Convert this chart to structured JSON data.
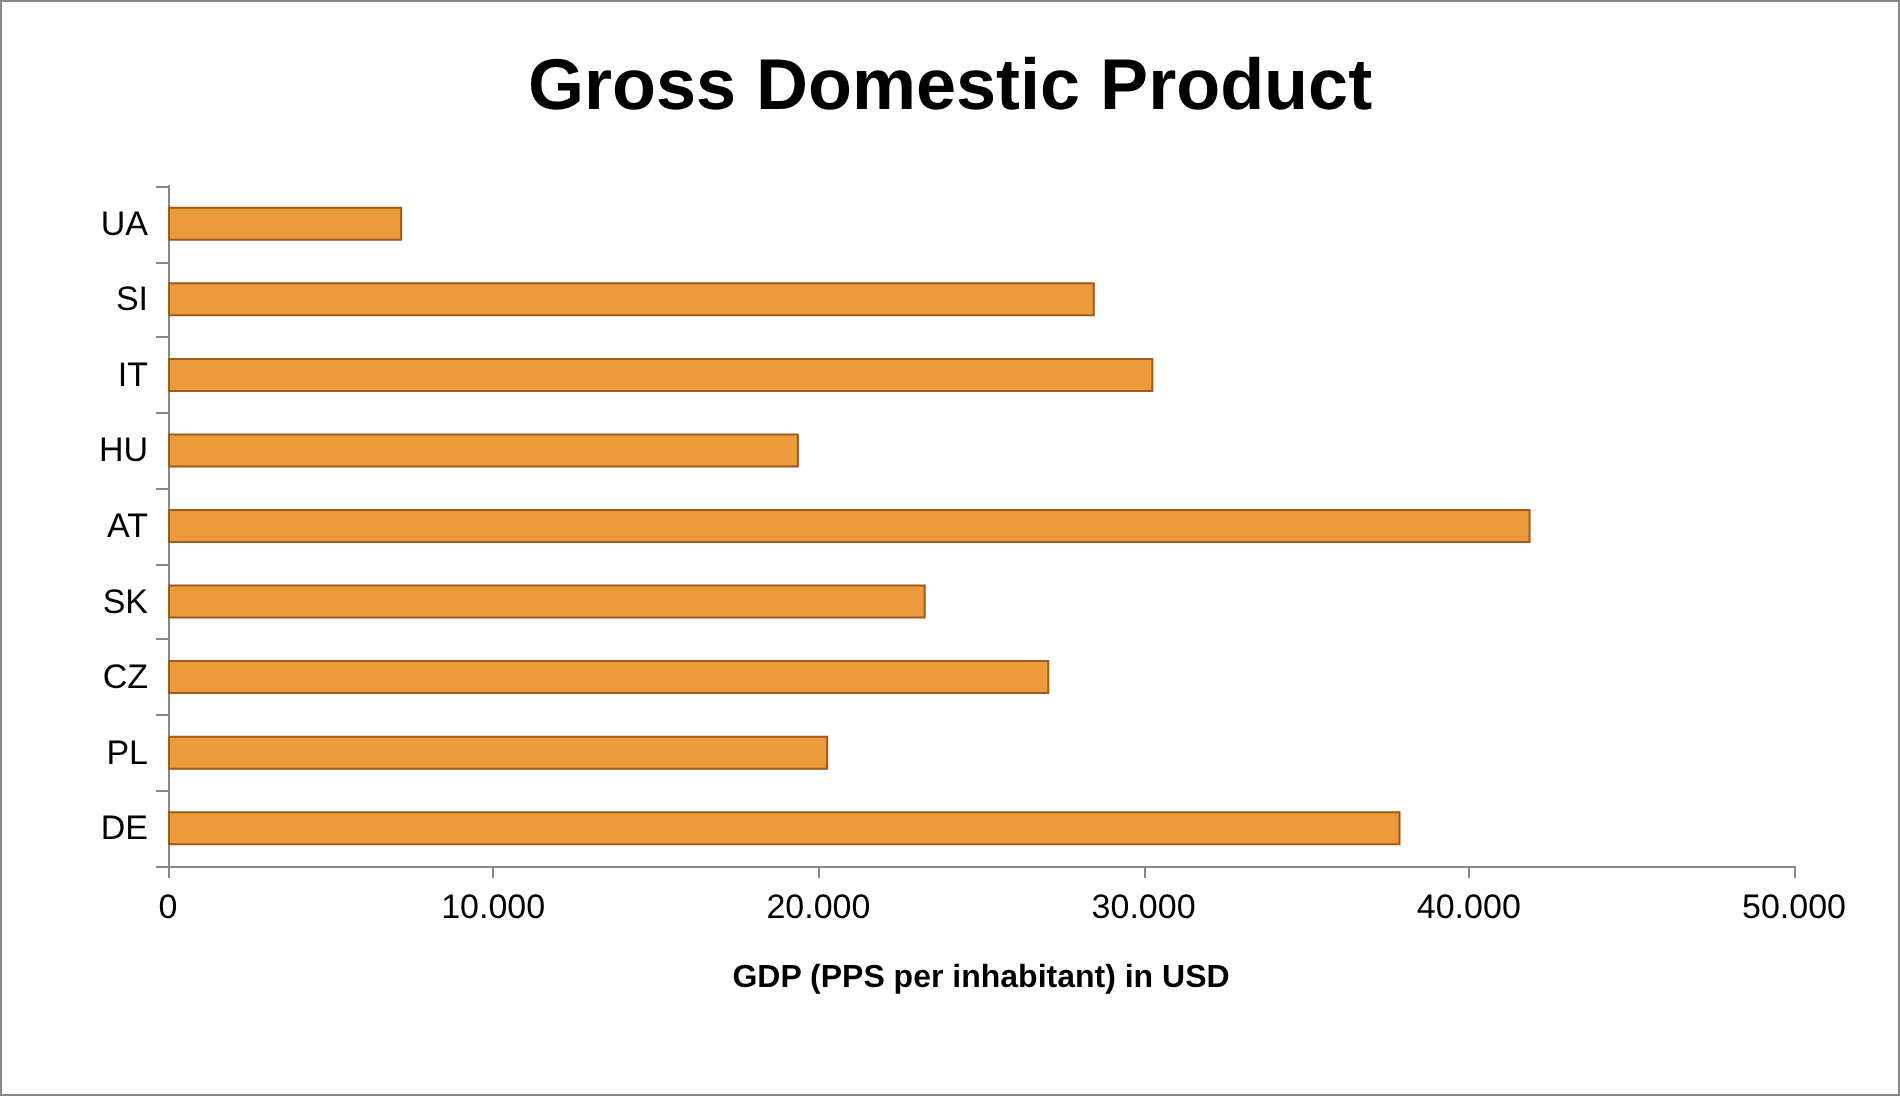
{
  "chart_data": {
    "type": "bar",
    "orientation": "horizontal",
    "title": "Gross Domestic Product",
    "xlabel": "GDP (PPS per inhabitant) in USD",
    "categories": [
      "UA",
      "SI",
      "IT",
      "HU",
      "AT",
      "SK",
      "CZ",
      "PL",
      "DE"
    ],
    "values": [
      7200,
      28500,
      30300,
      19400,
      41900,
      23300,
      27100,
      20300,
      37900
    ],
    "color": "#eb9a3c",
    "xlim": [
      0,
      50000
    ],
    "xticks": [
      0,
      {
        "value": 10000,
        "label": "10.000"
      },
      {
        "value": 20000,
        "label": "20.000"
      },
      {
        "value": 30000,
        "label": "30.000"
      },
      {
        "value": 40000,
        "label": "40.000"
      },
      {
        "value": 50000,
        "label": "50.000"
      }
    ],
    "grid": false
  }
}
